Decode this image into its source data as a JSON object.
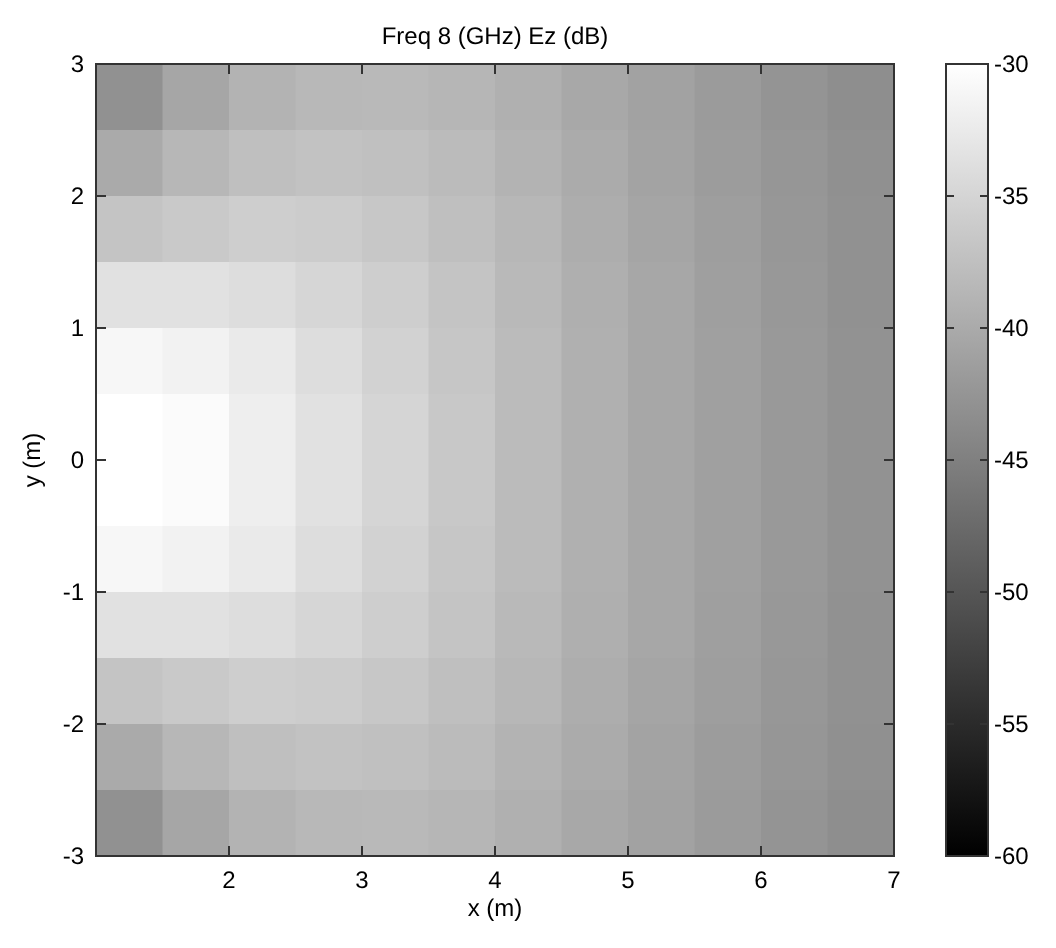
{
  "chart_data": {
    "type": "heatmap",
    "title": "Freq 8 (GHz) Ez (dB)",
    "xlabel": "x (m)",
    "ylabel": "y (m)",
    "xlim": [
      1,
      7
    ],
    "ylim": [
      -3,
      3
    ],
    "xticks": [
      2,
      3,
      4,
      5,
      6,
      7
    ],
    "yticks": [
      -3,
      -2,
      -1,
      0,
      1,
      2,
      3
    ],
    "clim": [
      -60,
      -30
    ],
    "cticks": [
      -60,
      -55,
      -50,
      -45,
      -40,
      -35,
      -30
    ],
    "cells": [
      [
        -43,
        -40.5,
        -39,
        -38.3,
        -38.2,
        -38.6,
        -39.3,
        -40.2,
        -41,
        -41.8,
        -42.6,
        -43.3
      ],
      [
        -40,
        -38.5,
        -37.5,
        -37.2,
        -37.4,
        -38,
        -38.9,
        -39.9,
        -40.8,
        -41.6,
        -42.4,
        -43.1
      ],
      [
        -37,
        -36.3,
        -35.8,
        -36,
        -36.6,
        -37.5,
        -38.5,
        -39.6,
        -40.6,
        -41.4,
        -42.2,
        -43
      ],
      [
        -33.5,
        -33.5,
        -34,
        -34.8,
        -35.8,
        -37,
        -38.2,
        -39.4,
        -40.4,
        -41.3,
        -42.1,
        -42.9
      ],
      [
        -31,
        -31.5,
        -32.5,
        -34,
        -35.3,
        -36.7,
        -38,
        -39.3,
        -40.3,
        -41.2,
        -42,
        -42.8
      ],
      [
        -30,
        -30.5,
        -32,
        -33.5,
        -35,
        -36.5,
        -38,
        -39.3,
        -40.3,
        -41.2,
        -42,
        -42.8
      ],
      [
        -30,
        -30.5,
        -32,
        -33.5,
        -35,
        -36.5,
        -38,
        -39.3,
        -40.3,
        -41.2,
        -42,
        -42.8
      ],
      [
        -31,
        -31.5,
        -32.5,
        -34,
        -35.3,
        -36.7,
        -38,
        -39.3,
        -40.3,
        -41.2,
        -42,
        -42.8
      ],
      [
        -33.5,
        -33.5,
        -34,
        -34.8,
        -35.8,
        -37,
        -38.2,
        -39.4,
        -40.4,
        -41.3,
        -42.1,
        -42.9
      ],
      [
        -37,
        -36.3,
        -35.8,
        -36,
        -36.6,
        -37.5,
        -38.5,
        -39.6,
        -40.6,
        -41.4,
        -42.2,
        -43
      ],
      [
        -40,
        -38.5,
        -37.5,
        -37.2,
        -37.4,
        -38,
        -38.9,
        -39.9,
        -40.8,
        -41.6,
        -42.4,
        -43.1
      ],
      [
        -43,
        -40.5,
        -39,
        -38.3,
        -38.2,
        -38.6,
        -39.3,
        -40.2,
        -41,
        -41.8,
        -42.6,
        -43.3
      ]
    ]
  }
}
